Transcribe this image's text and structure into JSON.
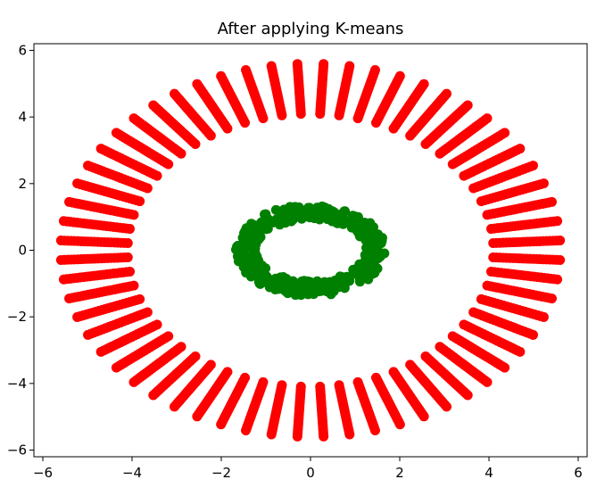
{
  "chart_data": {
    "type": "scatter",
    "title": "After applying K-means",
    "xlabel": "",
    "ylabel": "",
    "xlim": [
      -6.2,
      6.2
    ],
    "ylim": [
      -6.2,
      6.2
    ],
    "grid": false,
    "xticks": [
      -6,
      -4,
      -2,
      0,
      2,
      4,
      6
    ],
    "yticks": [
      -6,
      -4,
      -2,
      0,
      2,
      4,
      6
    ],
    "xtick_labels": [
      "−6",
      "−4",
      "−2",
      "0",
      "2",
      "4",
      "6"
    ],
    "ytick_labels": [
      "−6",
      "−4",
      "−2",
      "0",
      "2",
      "4",
      "6"
    ],
    "series": [
      {
        "color": "#ff0000",
        "shape": "ring of radial spokes",
        "spokes": 60,
        "radius_min": 4.1,
        "radius_max": 5.6,
        "points_per_spoke": 7
      },
      {
        "color": "#008000",
        "shape": "noisy ring",
        "center": [
          0,
          0
        ],
        "radius_x": 1.45,
        "radius_y": 1.15,
        "thickness": 0.45,
        "points": 420
      }
    ]
  }
}
